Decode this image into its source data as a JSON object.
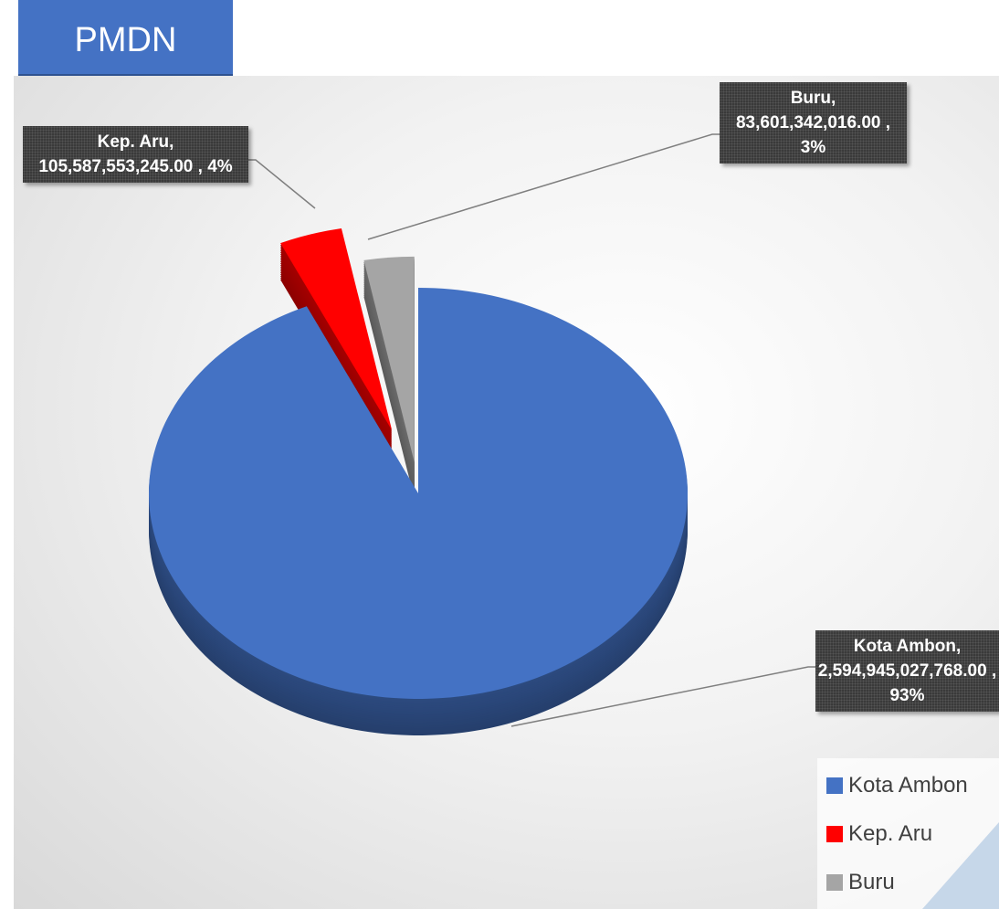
{
  "chart_data": {
    "type": "pie",
    "title": "PMDN",
    "categories": [
      "Kota Ambon",
      "Kep. Aru",
      "Buru"
    ],
    "values": [
      2594945027768,
      105587553245,
      83601342016
    ],
    "value_labels": [
      "Kota Ambon, 2,594,945,027,768.00 , 93%",
      "Kep. Aru, 105,587,553,245.00 , 4%",
      "Buru, 83,601,342,016.00 , 3%"
    ],
    "colors": [
      "#4472c4",
      "#ff0000",
      "#a5a5a5"
    ],
    "legend": "bottom-right"
  }
}
